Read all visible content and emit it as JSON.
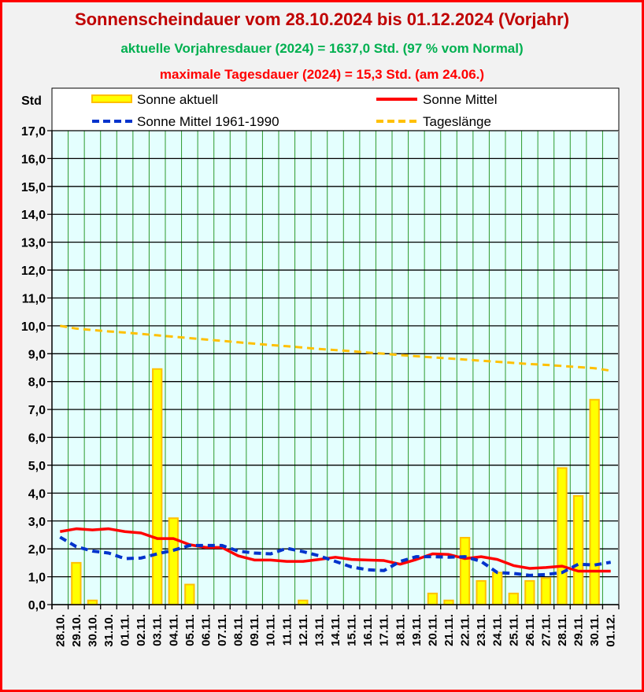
{
  "header": {
    "title": "Sonnenscheindauer vom 28.10.2024 bis 01.12.2024 (Vorjahr)",
    "subtitle1": "aktuelle Vorjahresdauer (2024) = 1637,0 Std. (97 % vom Normal)",
    "subtitle2": "maximale Tagesdauer (2024) = 15,3 Std. (am 24.06.)"
  },
  "colors": {
    "bar_fill": "#ffff00",
    "bar_stroke": "#ffc000",
    "mittel": "#ff0000",
    "mittel_old": "#0033cc",
    "tageslaenge": "#ffc000",
    "plot_bg": "#e4fffe",
    "vgrid": "#2e9a2e",
    "title": "#c00000"
  },
  "chart_data": {
    "type": "bar",
    "ylabel": "Std",
    "ylim": [
      0,
      17
    ],
    "yticks": [
      "0,0",
      "1,0",
      "2,0",
      "3,0",
      "4,0",
      "5,0",
      "6,0",
      "7,0",
      "8,0",
      "9,0",
      "10,0",
      "11,0",
      "12,0",
      "13,0",
      "14,0",
      "15,0",
      "16,0",
      "17,0"
    ],
    "categories": [
      "28.10.",
      "29.10.",
      "30.10.",
      "31.10.",
      "01.11.",
      "02.11.",
      "03.11.",
      "04.11.",
      "05.11.",
      "06.11.",
      "07.11.",
      "08.11.",
      "09.11.",
      "10.11.",
      "11.11.",
      "12.11.",
      "13.11.",
      "14.11.",
      "15.11.",
      "16.11.",
      "17.11.",
      "18.11.",
      "19.11.",
      "20.11.",
      "21.11.",
      "22.11.",
      "23.11.",
      "24.11.",
      "25.11.",
      "26.11.",
      "27.11.",
      "28.11.",
      "29.11.",
      "30.11.",
      "01.12."
    ],
    "legend": [
      "Sonne aktuell",
      "Sonne Mittel",
      "Sonne Mittel 1961-1990",
      "Tageslänge"
    ],
    "series": [
      {
        "name": "Sonne aktuell",
        "type": "bar",
        "values": [
          0,
          1.5,
          0.15,
          0,
          0,
          0,
          8.45,
          3.1,
          0.72,
          0,
          0,
          0,
          0,
          0,
          0,
          0.15,
          0,
          0,
          0,
          0,
          0,
          0,
          0,
          0.4,
          0.15,
          2.4,
          0.85,
          1.15,
          0.4,
          0.85,
          0.95,
          4.9,
          3.9,
          7.35,
          0
        ]
      },
      {
        "name": "Sonne Mittel",
        "type": "line",
        "values": [
          2.62,
          2.72,
          2.68,
          2.72,
          2.62,
          2.57,
          2.37,
          2.37,
          2.15,
          2.05,
          2.05,
          1.75,
          1.6,
          1.6,
          1.55,
          1.55,
          1.62,
          1.7,
          1.62,
          1.6,
          1.58,
          1.45,
          1.62,
          1.82,
          1.8,
          1.65,
          1.72,
          1.62,
          1.4,
          1.3,
          1.33,
          1.38,
          1.2,
          1.2,
          1.2
        ]
      },
      {
        "name": "Sonne Mittel 1961-1990",
        "type": "dashed",
        "values": [
          2.42,
          2.08,
          1.92,
          1.85,
          1.65,
          1.67,
          1.82,
          1.95,
          2.12,
          2.12,
          2.12,
          1.92,
          1.85,
          1.82,
          2.02,
          1.9,
          1.75,
          1.55,
          1.35,
          1.25,
          1.22,
          1.55,
          1.72,
          1.72,
          1.7,
          1.72,
          1.55,
          1.15,
          1.12,
          1.05,
          1.08,
          1.15,
          1.45,
          1.42,
          1.52
        ]
      },
      {
        "name": "Tageslänge",
        "type": "dashed",
        "values": [
          10.0,
          9.9,
          9.85,
          9.8,
          9.76,
          9.71,
          9.66,
          9.61,
          9.56,
          9.51,
          9.46,
          9.41,
          9.36,
          9.31,
          9.27,
          9.22,
          9.17,
          9.13,
          9.09,
          9.04,
          9.0,
          8.95,
          8.91,
          8.87,
          8.83,
          8.79,
          8.75,
          8.71,
          8.67,
          8.63,
          8.6,
          8.56,
          8.52,
          8.48,
          8.39
        ]
      }
    ]
  }
}
